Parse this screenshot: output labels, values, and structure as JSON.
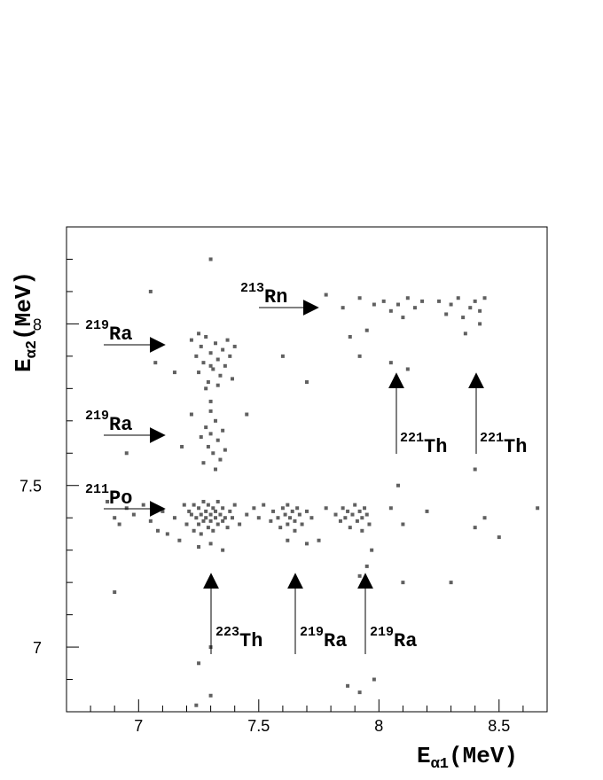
{
  "chart_data": {
    "type": "scatter",
    "x_label": {
      "main": "E",
      "sub": "α1",
      "unit": "(MeV)"
    },
    "y_label": {
      "main": "E",
      "sub": "α2",
      "unit": "(MeV)"
    },
    "xlim": [
      6.7,
      8.7
    ],
    "ylim": [
      6.8,
      8.3
    ],
    "xticks": [
      7,
      7.5,
      8,
      8.5
    ],
    "yticks": [
      7,
      7.5,
      8
    ],
    "xminorticks": [
      6.8,
      6.9,
      7.1,
      7.2,
      7.3,
      7.4,
      7.6,
      7.7,
      7.8,
      7.9,
      8.1,
      8.2,
      8.3,
      8.4,
      8.6
    ],
    "yminorticks": [
      6.9,
      7.1,
      7.2,
      7.3,
      7.4,
      7.6,
      7.7,
      7.8,
      7.9,
      8.1,
      8.2
    ],
    "color": "#606060",
    "x": [
      6.87,
      6.9,
      6.92,
      6.95,
      6.98,
      7.02,
      7.05,
      7.08,
      7.1,
      7.12,
      7.15,
      7.17,
      7.19,
      7.2,
      7.21,
      7.22,
      7.23,
      7.23,
      7.24,
      7.25,
      7.25,
      7.26,
      7.26,
      7.27,
      7.27,
      7.28,
      7.28,
      7.29,
      7.29,
      7.3,
      7.3,
      7.31,
      7.31,
      7.32,
      7.32,
      7.33,
      7.33,
      7.34,
      7.35,
      7.35,
      7.36,
      7.37,
      7.38,
      7.39,
      7.4,
      7.42,
      7.45,
      7.48,
      7.5,
      7.52,
      7.55,
      7.56,
      7.58,
      7.59,
      7.6,
      7.61,
      7.62,
      7.62,
      7.63,
      7.64,
      7.65,
      7.65,
      7.66,
      7.67,
      7.68,
      7.7,
      7.72,
      7.75,
      7.78,
      7.82,
      7.84,
      7.85,
      7.86,
      7.87,
      7.88,
      7.89,
      7.9,
      7.91,
      7.92,
      7.93,
      7.93,
      7.94,
      7.95,
      7.96,
      7.97,
      7.95,
      7.92,
      7.35,
      7.3,
      7.25,
      7.62,
      7.7,
      8.05,
      8.1,
      8.2,
      8.44,
      8.66,
      8.5,
      8.4,
      7.22,
      7.24,
      7.25,
      7.26,
      7.27,
      7.28,
      7.29,
      7.3,
      7.31,
      7.32,
      7.33,
      7.34,
      7.35,
      7.36,
      7.37,
      7.38,
      7.39,
      7.4,
      7.28,
      7.33,
      7.25,
      7.3,
      7.15,
      7.07,
      7.26,
      7.28,
      7.29,
      7.3,
      7.31,
      7.32,
      7.33,
      7.34,
      7.35,
      7.3,
      7.3,
      7.27,
      7.32,
      7.36,
      7.22,
      7.18,
      7.78,
      7.85,
      7.92,
      7.98,
      8.02,
      8.05,
      8.08,
      8.1,
      8.12,
      8.15,
      8.18,
      8.25,
      8.28,
      8.3,
      8.33,
      8.35,
      8.38,
      8.4,
      8.42,
      8.44,
      8.36,
      8.42,
      7.88,
      7.92,
      7.95,
      8.05,
      8.12,
      7.3,
      7.05,
      7.6,
      7.7,
      7.45,
      6.95,
      6.9,
      7.3,
      7.24,
      7.87,
      7.92,
      7.98,
      8.1,
      8.3,
      8.4,
      7.95,
      7.3,
      7.25,
      8.08
    ],
    "values": [
      7.45,
      7.4,
      7.38,
      7.43,
      7.41,
      7.44,
      7.39,
      7.36,
      7.42,
      7.35,
      7.4,
      7.33,
      7.44,
      7.38,
      7.42,
      7.41,
      7.36,
      7.44,
      7.4,
      7.43,
      7.38,
      7.41,
      7.35,
      7.45,
      7.39,
      7.42,
      7.4,
      7.37,
      7.44,
      7.41,
      7.39,
      7.43,
      7.36,
      7.4,
      7.42,
      7.38,
      7.45,
      7.41,
      7.39,
      7.43,
      7.4,
      7.37,
      7.42,
      7.4,
      7.44,
      7.38,
      7.41,
      7.43,
      7.4,
      7.44,
      7.39,
      7.42,
      7.4,
      7.37,
      7.43,
      7.41,
      7.38,
      7.44,
      7.4,
      7.42,
      7.39,
      7.36,
      7.43,
      7.41,
      7.38,
      7.42,
      7.4,
      7.33,
      7.43,
      7.41,
      7.39,
      7.43,
      7.4,
      7.42,
      7.37,
      7.41,
      7.44,
      7.39,
      7.42,
      7.4,
      7.36,
      7.43,
      7.41,
      7.38,
      7.3,
      7.25,
      7.22,
      7.3,
      7.32,
      7.31,
      7.33,
      7.32,
      7.43,
      7.38,
      7.42,
      7.4,
      7.43,
      7.34,
      7.37,
      7.95,
      7.9,
      7.85,
      7.93,
      7.88,
      7.96,
      7.82,
      7.91,
      7.86,
      7.94,
      7.89,
      7.84,
      7.92,
      7.87,
      7.95,
      7.9,
      7.83,
      7.93,
      7.8,
      7.81,
      7.97,
      7.87,
      7.85,
      7.88,
      7.65,
      7.68,
      7.62,
      7.66,
      7.6,
      7.7,
      7.64,
      7.58,
      7.67,
      7.73,
      7.76,
      7.57,
      7.55,
      7.61,
      7.72,
      7.62,
      8.09,
      8.05,
      8.08,
      8.06,
      8.07,
      8.04,
      8.06,
      8.02,
      8.08,
      8.05,
      8.07,
      8.07,
      8.03,
      8.06,
      8.08,
      8.02,
      8.05,
      8.07,
      8.04,
      8.08,
      7.97,
      8.0,
      7.96,
      7.9,
      7.98,
      7.88,
      7.86,
      8.2,
      8.1,
      7.9,
      7.82,
      7.72,
      7.6,
      7.17,
      6.85,
      6.82,
      6.88,
      6.86,
      6.9,
      7.2,
      7.2,
      7.55,
      7.2,
      7.0,
      6.95,
      7.5
    ],
    "annotations": [
      {
        "mass": "219",
        "element": "Ra"
      },
      {
        "mass": "219",
        "element": "Ra"
      },
      {
        "mass": "211",
        "element": "Po"
      },
      {
        "mass": "213",
        "element": "Rn"
      },
      {
        "mass": "221",
        "element": "Th"
      },
      {
        "mass": "221",
        "element": "Th"
      },
      {
        "mass": "223",
        "element": "Th"
      },
      {
        "mass": "219",
        "element": "Ra"
      },
      {
        "mass": "219",
        "element": "Ra"
      }
    ]
  }
}
